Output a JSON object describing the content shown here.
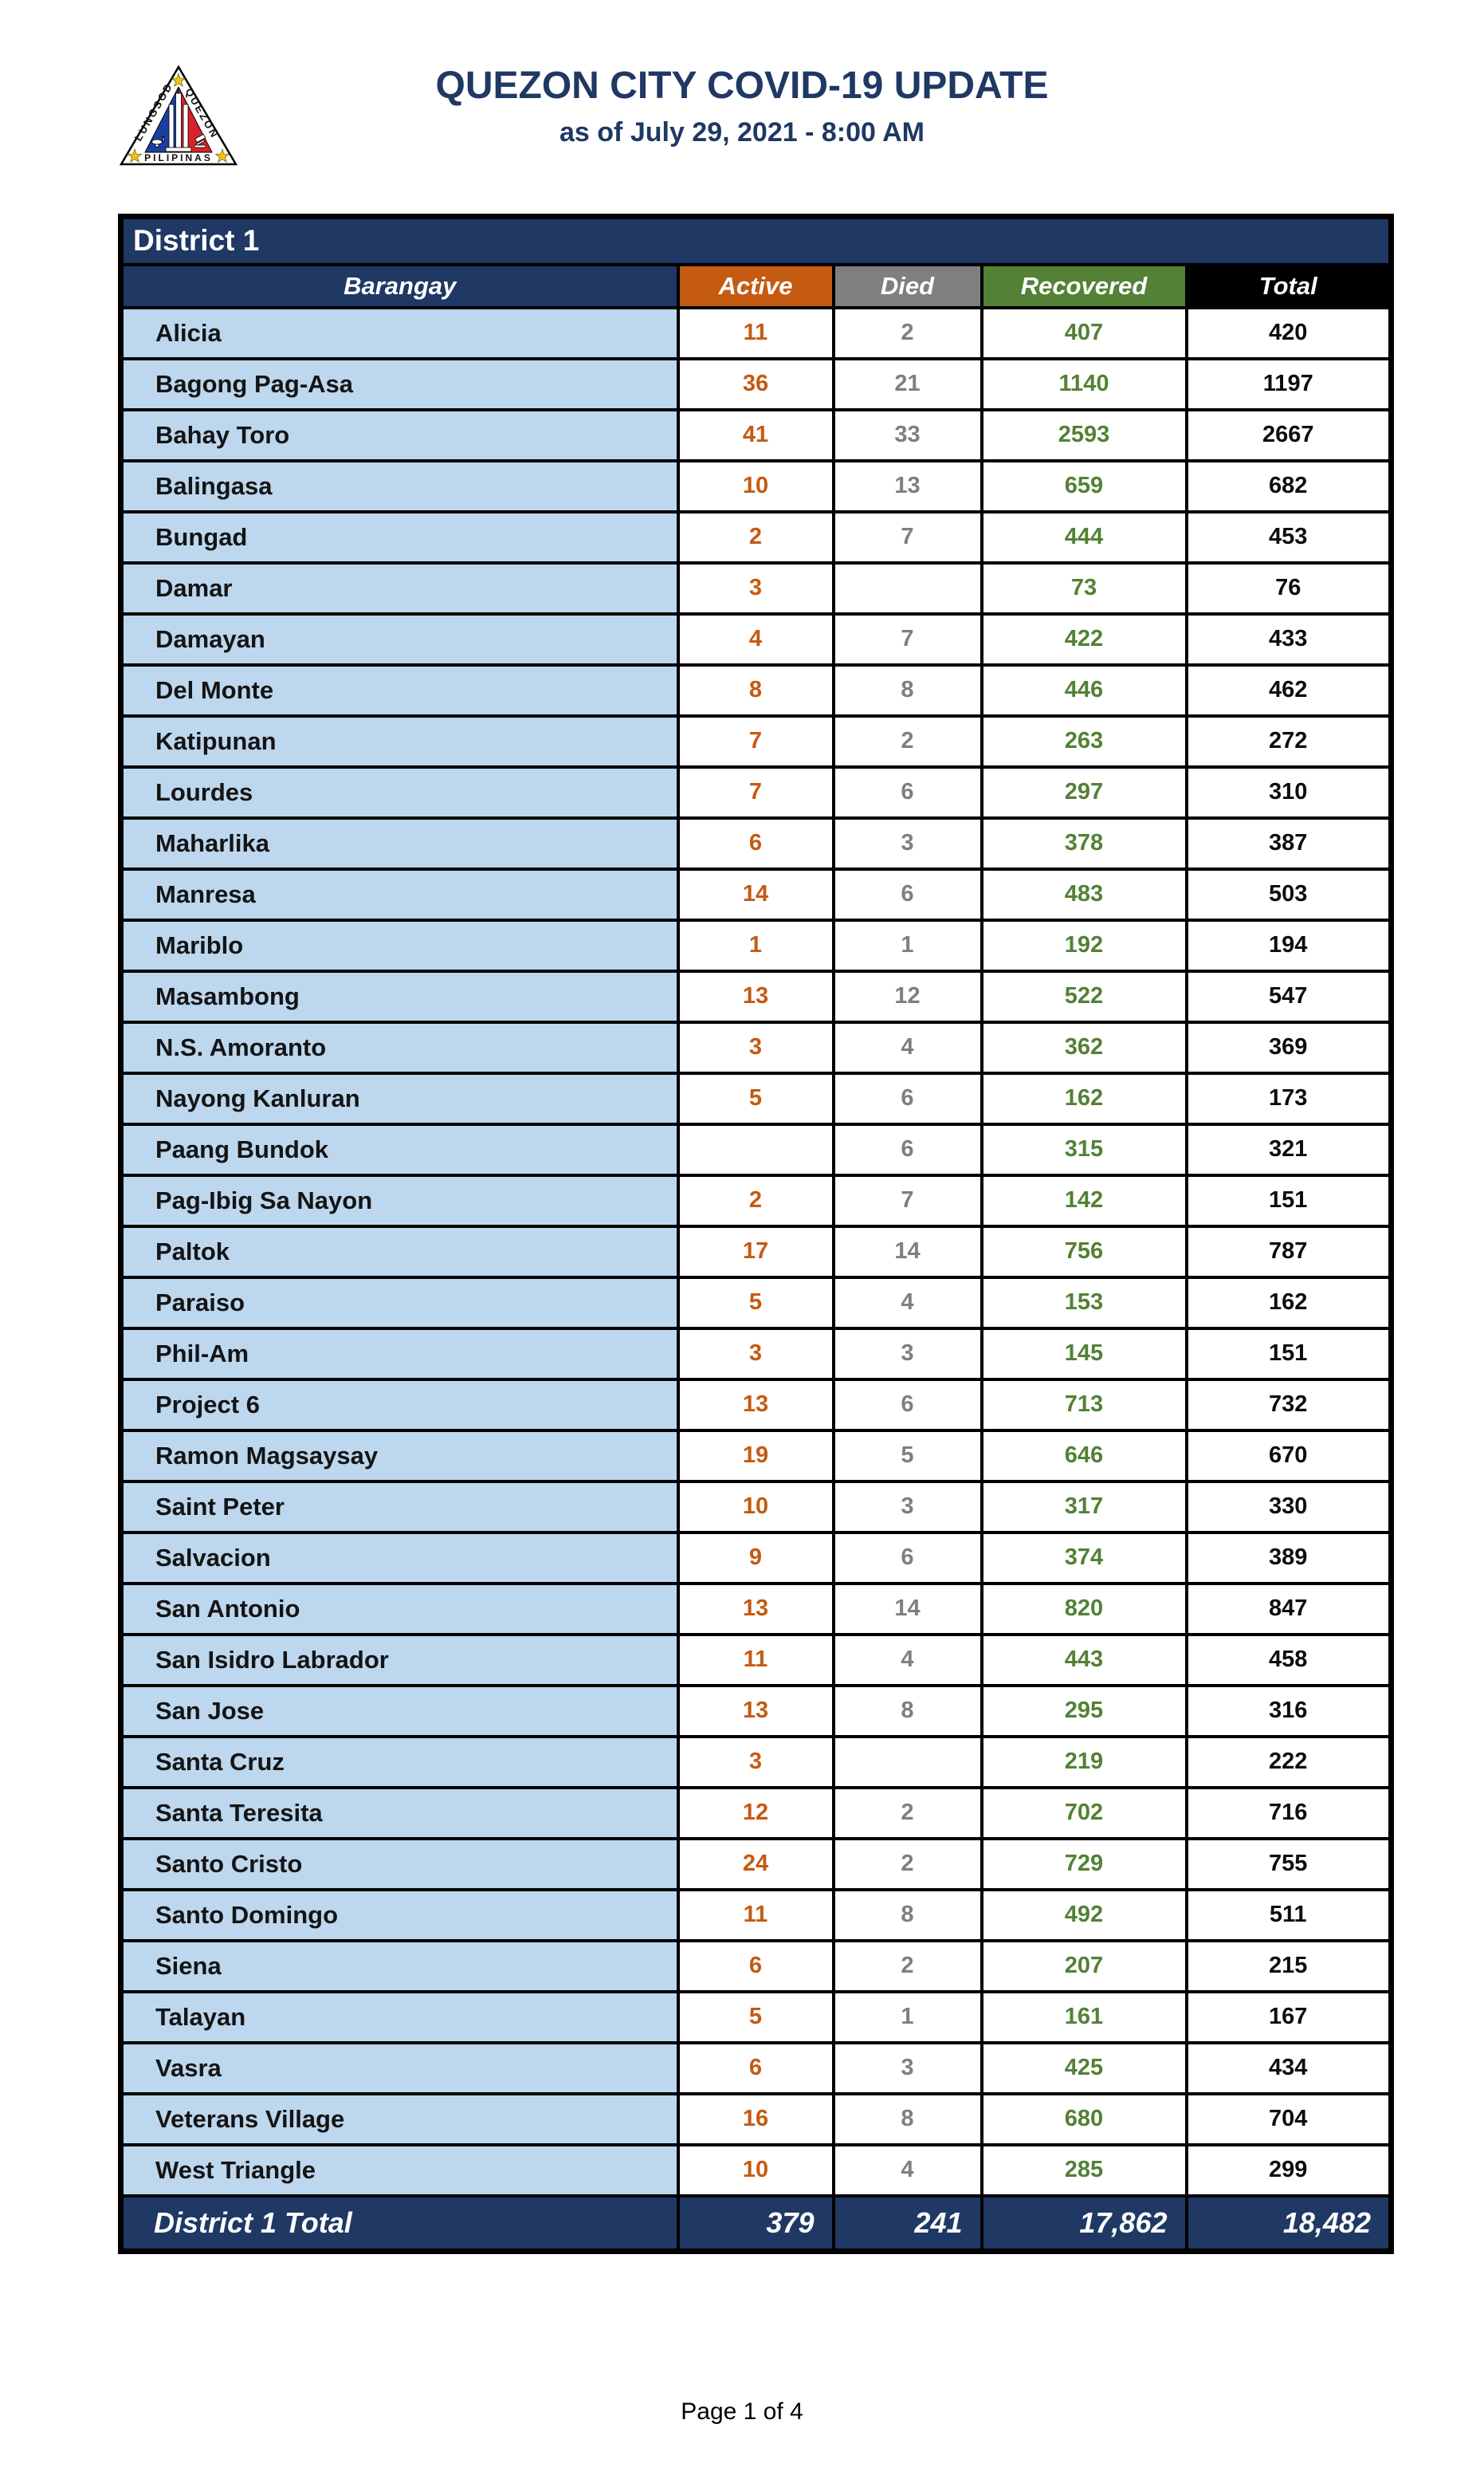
{
  "header": {
    "title": "QUEZON CITY COVID-19 UPDATE",
    "subtitle": "as of July 29, 2021 - 8:00 AM",
    "logo": {
      "text_left": "LUNGSOD",
      "text_right": "QUEZON",
      "text_bottom": "PILIPINAS"
    }
  },
  "table": {
    "district_label": "District 1",
    "columns": [
      "Barangay",
      "Active",
      "Died",
      "Recovered",
      "Total"
    ],
    "rows": [
      {
        "barangay": "Alicia",
        "active": "11",
        "died": "2",
        "recovered": "407",
        "total": "420"
      },
      {
        "barangay": "Bagong Pag-Asa",
        "active": "36",
        "died": "21",
        "recovered": "1140",
        "total": "1197"
      },
      {
        "barangay": "Bahay Toro",
        "active": "41",
        "died": "33",
        "recovered": "2593",
        "total": "2667"
      },
      {
        "barangay": "Balingasa",
        "active": "10",
        "died": "13",
        "recovered": "659",
        "total": "682"
      },
      {
        "barangay": "Bungad",
        "active": "2",
        "died": "7",
        "recovered": "444",
        "total": "453"
      },
      {
        "barangay": "Damar",
        "active": "3",
        "died": "",
        "recovered": "73",
        "total": "76"
      },
      {
        "barangay": "Damayan",
        "active": "4",
        "died": "7",
        "recovered": "422",
        "total": "433"
      },
      {
        "barangay": "Del Monte",
        "active": "8",
        "died": "8",
        "recovered": "446",
        "total": "462"
      },
      {
        "barangay": "Katipunan",
        "active": "7",
        "died": "2",
        "recovered": "263",
        "total": "272"
      },
      {
        "barangay": "Lourdes",
        "active": "7",
        "died": "6",
        "recovered": "297",
        "total": "310"
      },
      {
        "barangay": "Maharlika",
        "active": "6",
        "died": "3",
        "recovered": "378",
        "total": "387"
      },
      {
        "barangay": "Manresa",
        "active": "14",
        "died": "6",
        "recovered": "483",
        "total": "503"
      },
      {
        "barangay": "Mariblo",
        "active": "1",
        "died": "1",
        "recovered": "192",
        "total": "194"
      },
      {
        "barangay": "Masambong",
        "active": "13",
        "died": "12",
        "recovered": "522",
        "total": "547"
      },
      {
        "barangay": "N.S. Amoranto",
        "active": "3",
        "died": "4",
        "recovered": "362",
        "total": "369"
      },
      {
        "barangay": "Nayong Kanluran",
        "active": "5",
        "died": "6",
        "recovered": "162",
        "total": "173"
      },
      {
        "barangay": "Paang Bundok",
        "active": "",
        "died": "6",
        "recovered": "315",
        "total": "321"
      },
      {
        "barangay": "Pag-Ibig Sa Nayon",
        "active": "2",
        "died": "7",
        "recovered": "142",
        "total": "151"
      },
      {
        "barangay": "Paltok",
        "active": "17",
        "died": "14",
        "recovered": "756",
        "total": "787"
      },
      {
        "barangay": "Paraiso",
        "active": "5",
        "died": "4",
        "recovered": "153",
        "total": "162"
      },
      {
        "barangay": "Phil-Am",
        "active": "3",
        "died": "3",
        "recovered": "145",
        "total": "151"
      },
      {
        "barangay": "Project 6",
        "active": "13",
        "died": "6",
        "recovered": "713",
        "total": "732"
      },
      {
        "barangay": "Ramon Magsaysay",
        "active": "19",
        "died": "5",
        "recovered": "646",
        "total": "670"
      },
      {
        "barangay": "Saint Peter",
        "active": "10",
        "died": "3",
        "recovered": "317",
        "total": "330"
      },
      {
        "barangay": "Salvacion",
        "active": "9",
        "died": "6",
        "recovered": "374",
        "total": "389"
      },
      {
        "barangay": "San Antonio",
        "active": "13",
        "died": "14",
        "recovered": "820",
        "total": "847"
      },
      {
        "barangay": "San Isidro Labrador",
        "active": "11",
        "died": "4",
        "recovered": "443",
        "total": "458"
      },
      {
        "barangay": "San Jose",
        "active": "13",
        "died": "8",
        "recovered": "295",
        "total": "316"
      },
      {
        "barangay": "Santa Cruz",
        "active": "3",
        "died": "",
        "recovered": "219",
        "total": "222"
      },
      {
        "barangay": "Santa Teresita",
        "active": "12",
        "died": "2",
        "recovered": "702",
        "total": "716"
      },
      {
        "barangay": "Santo Cristo",
        "active": "24",
        "died": "2",
        "recovered": "729",
        "total": "755"
      },
      {
        "barangay": "Santo Domingo",
        "active": "11",
        "died": "8",
        "recovered": "492",
        "total": "511"
      },
      {
        "barangay": "Siena",
        "active": "6",
        "died": "2",
        "recovered": "207",
        "total": "215"
      },
      {
        "barangay": "Talayan",
        "active": "5",
        "died": "1",
        "recovered": "161",
        "total": "167"
      },
      {
        "barangay": "Vasra",
        "active": "6",
        "died": "3",
        "recovered": "425",
        "total": "434"
      },
      {
        "barangay": "Veterans Village",
        "active": "16",
        "died": "8",
        "recovered": "680",
        "total": "704"
      },
      {
        "barangay": "West Triangle",
        "active": "10",
        "died": "4",
        "recovered": "285",
        "total": "299"
      }
    ],
    "total_row": {
      "label": "District 1 Total",
      "active": "379",
      "died": "241",
      "recovered": "17,862",
      "total": "18,482"
    }
  },
  "page": {
    "footer": "Page 1 of 4"
  },
  "colors": {
    "navy": "#1F3864",
    "active_orange": "#C55A11",
    "died_gray": "#7F7F7F",
    "recovered_green": "#538135",
    "total_black": "#000000",
    "barangay_cell_blue": "#BDD7EE",
    "seal_blue": "#1B3FA0",
    "seal_red": "#D8232A",
    "seal_star_gold": "#F0C419"
  }
}
